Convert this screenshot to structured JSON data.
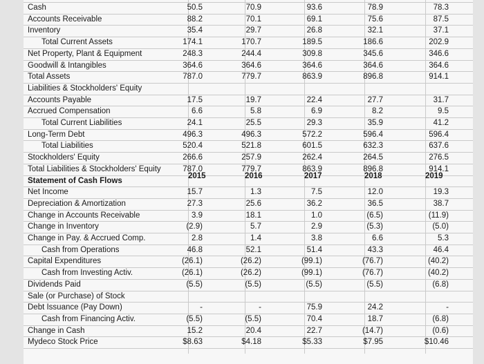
{
  "columns_x": [
    293,
    378,
    466,
    554,
    649
  ],
  "year_row": {
    "row": 15,
    "years": [
      "2015",
      "2016",
      "2017",
      "2018",
      "2019"
    ]
  },
  "rows": [
    {
      "label": "Cash",
      "values": [
        "50.5",
        "70.9",
        "93.6",
        "78.9",
        "78.3"
      ]
    },
    {
      "label": "Accounts Receivable",
      "values": [
        "88.2",
        "70.1",
        "69.1",
        "75.6",
        "87.5"
      ]
    },
    {
      "label": "Inventory",
      "values": [
        "35.4",
        "29.7",
        "26.8",
        "32.1",
        "37.1"
      ]
    },
    {
      "label": "Total Current Assets",
      "indent": true,
      "values": [
        "174.1",
        "170.7",
        "189.5",
        "186.6",
        "202.9"
      ]
    },
    {
      "label": "Net Property, Plant & Equipment",
      "values": [
        "248.3",
        "244.4",
        "309.8",
        "345.6",
        "346.6"
      ]
    },
    {
      "label": "Goodwill & Intangibles",
      "values": [
        "364.6",
        "364.6",
        "364.6",
        "364.6",
        "364.6"
      ]
    },
    {
      "label": "Total Assets",
      "values": [
        "787.0",
        "779.7",
        "863.9",
        "896.8",
        "914.1"
      ]
    },
    {
      "label": "Liabilities & Stockholders' Equity",
      "values": [
        "",
        "",
        "",
        "",
        ""
      ]
    },
    {
      "label": "Accounts Payable",
      "values": [
        "17.5",
        "19.7",
        "22.4",
        "27.7",
        "31.7"
      ]
    },
    {
      "label": "Accrued Compensation",
      "values": [
        "6.6",
        "5.8",
        "6.9",
        "8.2",
        "9.5"
      ]
    },
    {
      "label": "Total Current Liabilities",
      "indent": true,
      "values": [
        "24.1",
        "25.5",
        "29.3",
        "35.9",
        "41.2"
      ]
    },
    {
      "label": "Long-Term Debt",
      "values": [
        "496.3",
        "496.3",
        "572.2",
        "596.4",
        "596.4"
      ]
    },
    {
      "label": "Total Liabilities",
      "indent": true,
      "values": [
        "520.4",
        "521.8",
        "601.5",
        "632.3",
        "637.6"
      ]
    },
    {
      "label": "Stockholders' Equity",
      "values": [
        "266.6",
        "257.9",
        "262.4",
        "264.5",
        "276.5"
      ]
    },
    {
      "label": "Total Liabilities & Stockholders' Equity",
      "values": [
        "787.0",
        "779.7",
        "863.9",
        "896.8",
        "914.1"
      ]
    },
    {
      "label": "Statement of Cash Flows",
      "bold": true,
      "values": [
        "",
        "",
        "",
        "",
        ""
      ]
    },
    {
      "label": "Net Income",
      "values": [
        "15.7",
        "1.3",
        "7.5",
        "12.0",
        "19.3"
      ]
    },
    {
      "label": "Depreciation & Amortization",
      "values": [
        "27.3",
        "25.6",
        "36.2",
        "36.5",
        "38.7"
      ]
    },
    {
      "label": "Change in Accounts Receivable",
      "values": [
        "3.9",
        "18.1",
        "1.0",
        "(6.5)",
        "(11.9)"
      ]
    },
    {
      "label": "Change in Inventory",
      "values": [
        "(2.9)",
        "5.7",
        "2.9",
        "(5.3)",
        "(5.0)"
      ]
    },
    {
      "label": "Change in Pay. & Accrued Comp.",
      "values": [
        "2.8",
        "1.4",
        "3.8",
        "6.6",
        "5.3"
      ]
    },
    {
      "label": "Cash from Operations",
      "indent": true,
      "values": [
        "46.8",
        "52.1",
        "51.4",
        "43.3",
        "46.4"
      ]
    },
    {
      "label": "Capital Expenditures",
      "values": [
        "(26.1)",
        "(26.2)",
        "(99.1)",
        "(76.7)",
        "(40.2)"
      ]
    },
    {
      "label": "Cash from Investing Activ.",
      "indent": true,
      "values": [
        "(26.1)",
        "(26.2)",
        "(99.1)",
        "(76.7)",
        "(40.2)"
      ]
    },
    {
      "label": "Dividends Paid",
      "values": [
        "(5.5)",
        "(5.5)",
        "(5.5)",
        "(5.5)",
        "(6.8)"
      ]
    },
    {
      "label": "Sale (or Purchase) of Stock",
      "values": [
        "",
        "",
        "",
        "",
        ""
      ]
    },
    {
      "label": "Debt Issuance (Pay Down)",
      "values": [
        "-",
        "-",
        "75.9",
        "24.2",
        "-"
      ]
    },
    {
      "label": "Cash from Financing Activ.",
      "indent": true,
      "values": [
        "(5.5)",
        "(5.5)",
        "70.4",
        "18.7",
        "(6.8)"
      ]
    },
    {
      "label": "Change in Cash",
      "values": [
        "15.2",
        "20.4",
        "22.7",
        "(14.7)",
        "(0.6)"
      ]
    },
    {
      "label": "Mydeco Stock Price",
      "values": [
        "$8.63",
        "$4.18",
        "$5.33",
        "$7.95",
        "$10.46"
      ]
    }
  ]
}
